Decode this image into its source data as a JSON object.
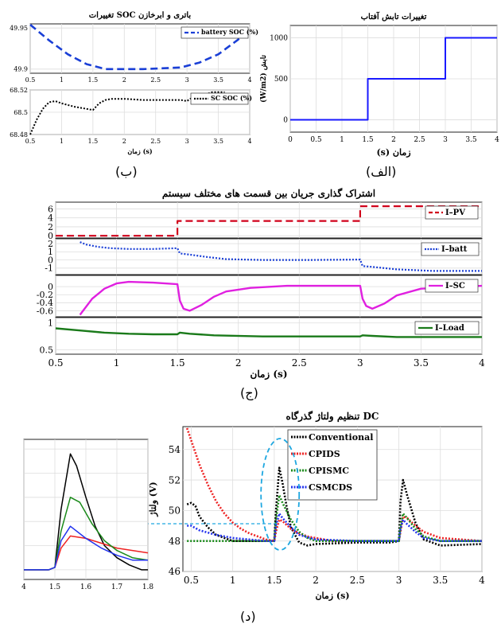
{
  "captions": {
    "b": "(ب)",
    "alef": "(الف)",
    "jim": "(ج)",
    "dal": "(د)"
  },
  "chart_data": [
    {
      "id": "alef",
      "type": "line",
      "title": "تغییرات تابش آفتاب",
      "xlabel": "(s) زمان",
      "ylabel": "(W/m2) تابش",
      "xlim": [
        0,
        4
      ],
      "ylim": [
        -150,
        1150
      ],
      "xticks": [
        "0",
        "0.5",
        "1",
        "1.5",
        "2",
        "2.5",
        "3",
        "3.5",
        "4"
      ],
      "yticks": [
        "0",
        "500",
        "1000"
      ],
      "grid": true,
      "series": [
        {
          "name": "",
          "color": "#1a1aff",
          "style": "solid",
          "x": [
            0,
            1.5,
            1.5,
            3,
            3,
            4
          ],
          "y": [
            0,
            0,
            500,
            500,
            1000,
            1000
          ]
        }
      ]
    },
    {
      "id": "b-top",
      "type": "line",
      "title": "تغییرات SOC باتری و ابرخازن",
      "xlim": [
        0.5,
        4
      ],
      "ylim": [
        49.895,
        49.955
      ],
      "xticks": [
        "0.5",
        "1",
        "1.5",
        "2",
        "2.5",
        "3",
        "3.5",
        "4"
      ],
      "yticks": [
        "49.9",
        "49.95"
      ],
      "grid": true,
      "legend": "top-right",
      "series": [
        {
          "name": "battery SOC (%)",
          "color": "#1a3fd6",
          "style": "dashed",
          "x": [
            0.5,
            0.8,
            1.1,
            1.4,
            1.7,
            2.0,
            2.3,
            2.6,
            2.9,
            3.2,
            3.5,
            3.8,
            4.0
          ],
          "y": [
            49.954,
            49.935,
            49.918,
            49.906,
            49.9,
            49.9,
            49.9,
            49.901,
            49.902,
            49.908,
            49.918,
            49.935,
            49.948
          ]
        }
      ]
    },
    {
      "id": "b-bottom",
      "type": "line",
      "xlabel": "زمان (s)",
      "xlim": [
        0.5,
        4
      ],
      "ylim": [
        68.48,
        68.52
      ],
      "xticks": [
        "0.5",
        "1",
        "1.5",
        "2",
        "2.5",
        "3",
        "3.5",
        "4"
      ],
      "yticks": [
        "68.48",
        "68.5",
        "68.52"
      ],
      "grid": true,
      "legend": "top-right",
      "series": [
        {
          "name": "SC SOC (%)",
          "color": "#000000",
          "style": "dotted",
          "x": [
            0.5,
            0.6,
            0.7,
            0.8,
            0.9,
            1.0,
            1.2,
            1.4,
            1.5,
            1.55,
            1.6,
            1.7,
            1.8,
            2.0,
            2.3,
            2.6,
            2.9,
            3.0,
            3.05,
            3.1,
            3.2,
            3.4,
            3.6
          ],
          "y": [
            68.48,
            68.493,
            68.503,
            68.509,
            68.51,
            68.508,
            68.505,
            68.503,
            68.502,
            68.505,
            68.508,
            68.511,
            68.512,
            68.512,
            68.511,
            68.511,
            68.511,
            68.51,
            68.512,
            68.513,
            68.514,
            68.518,
            68.518
          ]
        }
      ]
    },
    {
      "id": "jim",
      "type": "line",
      "title": "اشتراک گذاری جریان بین قسمت های مختلف سیستم",
      "xlabel": "زمان (s)",
      "xlim": [
        0.5,
        4
      ],
      "xticks": [
        "0.5",
        "1",
        "1.5",
        "2",
        "2.5",
        "3",
        "3.5",
        "4"
      ],
      "grid": true,
      "panels": [
        {
          "name": "I–PV",
          "color": "#d0021b",
          "style": "dashed",
          "ylim": [
            -0.5,
            7.5
          ],
          "yticks": [
            "0",
            "2",
            "4",
            "6"
          ],
          "x": [
            0.5,
            1.5,
            1.5,
            3.0,
            3.0,
            4.0
          ],
          "y": [
            0,
            0,
            3.3,
            3.3,
            6.6,
            6.6
          ]
        },
        {
          "name": "I–batt",
          "color": "#1a3fd6",
          "style": "dotted",
          "ylim": [
            -1.8,
            2.6
          ],
          "yticks": [
            "-1",
            "0",
            "1",
            "2"
          ],
          "x": [
            0.7,
            0.75,
            0.85,
            0.95,
            1.1,
            1.3,
            1.5,
            1.52,
            1.6,
            1.75,
            1.9,
            2.2,
            2.6,
            3.0,
            3.02,
            3.1,
            3.3,
            3.6,
            4.0
          ],
          "y": [
            2.2,
            1.9,
            1.6,
            1.45,
            1.35,
            1.35,
            1.45,
            0.8,
            0.65,
            0.35,
            0.1,
            0.0,
            0.0,
            0.05,
            -0.75,
            -0.85,
            -1.15,
            -1.35,
            -1.35
          ]
        },
        {
          "name": "I–SC",
          "color": "#e020e0",
          "style": "solid",
          "ylim": [
            -0.75,
            0.28
          ],
          "yticks": [
            "-0.6",
            "-0.4",
            "-0.2",
            "0"
          ],
          "x": [
            0.7,
            0.8,
            0.9,
            1.0,
            1.1,
            1.3,
            1.5,
            1.52,
            1.55,
            1.6,
            1.7,
            1.8,
            1.9,
            2.1,
            2.4,
            2.7,
            3.0,
            3.02,
            3.05,
            3.1,
            3.2,
            3.3,
            3.5,
            4.0
          ],
          "y": [
            -0.7,
            -0.3,
            -0.05,
            0.08,
            0.12,
            0.1,
            0.06,
            -0.35,
            -0.55,
            -0.6,
            -0.45,
            -0.25,
            -0.12,
            -0.03,
            0.02,
            0.02,
            0.02,
            -0.3,
            -0.48,
            -0.55,
            -0.42,
            -0.22,
            -0.05,
            0.02
          ]
        },
        {
          "name": "I–Load",
          "color": "#1a7a1a",
          "style": "solid",
          "ylim": [
            0.42,
            1.1
          ],
          "yticks": [
            "0.5",
            "1"
          ],
          "x": [
            0.5,
            0.7,
            0.9,
            1.1,
            1.3,
            1.5,
            1.52,
            1.6,
            1.8,
            2.2,
            2.6,
            3.0,
            3.02,
            3.1,
            3.3,
            3.6,
            4.0
          ],
          "y": [
            0.9,
            0.86,
            0.82,
            0.8,
            0.79,
            0.79,
            0.82,
            0.8,
            0.77,
            0.75,
            0.75,
            0.75,
            0.77,
            0.76,
            0.74,
            0.74,
            0.74
          ]
        }
      ]
    },
    {
      "id": "dal",
      "type": "line",
      "title": "تنظیم ولتاژ گذرگاه DC",
      "xlabel": "زمان (s)",
      "ylabel": "ولتاژ (V)",
      "xlim": [
        0.4,
        4
      ],
      "ylim": [
        46,
        55.5
      ],
      "xticks": [
        "0.5",
        "1",
        "1.5",
        "2",
        "2.5",
        "3",
        "3.5",
        "4"
      ],
      "yticks": [
        "46",
        "48",
        "50",
        "52",
        "54"
      ],
      "grid": true,
      "legend": "top-left",
      "series": [
        {
          "name": "Conventional",
          "color": "#000000",
          "style": "dotted",
          "x": [
            0.45,
            0.5,
            0.55,
            0.6,
            0.7,
            0.8,
            0.9,
            1.0,
            1.2,
            1.4,
            1.5,
            1.52,
            1.56,
            1.6,
            1.65,
            1.7,
            1.8,
            1.9,
            2.0,
            2.5,
            2.9,
            3.0,
            3.02,
            3.05,
            3.1,
            3.2,
            3.3,
            3.5,
            4.0
          ],
          "y": [
            50.4,
            50.5,
            50.3,
            49.6,
            48.9,
            48.4,
            48.2,
            48.0,
            48.0,
            48.0,
            48.0,
            50.0,
            52.8,
            51.8,
            50.2,
            48.9,
            47.9,
            47.7,
            47.8,
            47.9,
            47.9,
            48.0,
            50.6,
            52.0,
            51.0,
            49.2,
            48.1,
            47.7,
            47.8
          ]
        },
        {
          "name": "CPIDS",
          "color": "#ee2222",
          "style": "dotted",
          "x": [
            0.45,
            0.5,
            0.6,
            0.7,
            0.8,
            0.9,
            1.0,
            1.1,
            1.2,
            1.3,
            1.4,
            1.5,
            1.52,
            1.56,
            1.6,
            1.7,
            1.8,
            1.9,
            2.0,
            2.2,
            2.5,
            3.0,
            3.02,
            3.05,
            3.1,
            3.2,
            3.3,
            3.5,
            4.0
          ],
          "y": [
            55.4,
            54.6,
            53.0,
            51.7,
            50.6,
            49.8,
            49.2,
            48.8,
            48.5,
            48.3,
            48.1,
            48.0,
            48.6,
            49.4,
            49.3,
            48.8,
            48.5,
            48.3,
            48.2,
            48.0,
            48.0,
            48.0,
            48.6,
            49.6,
            49.5,
            49.0,
            48.6,
            48.2,
            48.0
          ]
        },
        {
          "name": "CPISMC",
          "color": "#1a8a1a",
          "style": "dotted",
          "x": [
            0.45,
            0.6,
            1.0,
            1.4,
            1.5,
            1.52,
            1.56,
            1.6,
            1.7,
            1.8,
            1.9,
            2.0,
            2.5,
            3.0,
            3.02,
            3.05,
            3.1,
            3.2,
            3.3,
            3.5,
            4.0
          ],
          "y": [
            48.0,
            48.0,
            48.0,
            48.0,
            48.0,
            49.4,
            51.0,
            50.5,
            49.4,
            48.6,
            48.2,
            48.0,
            48.0,
            48.0,
            49.0,
            49.8,
            49.5,
            48.8,
            48.3,
            48.0,
            48.0
          ]
        },
        {
          "name": "CSMCDS",
          "color": "#2233ee",
          "style": "dotted",
          "x": [
            0.45,
            0.5,
            0.6,
            0.8,
            1.0,
            1.2,
            1.4,
            1.5,
            1.52,
            1.56,
            1.6,
            1.7,
            1.8,
            2.0,
            2.5,
            3.0,
            3.02,
            3.05,
            3.1,
            3.2,
            3.3,
            3.5,
            4.0
          ],
          "y": [
            49.0,
            49.0,
            48.7,
            48.4,
            48.2,
            48.1,
            48.0,
            48.0,
            49.0,
            49.8,
            49.5,
            48.9,
            48.4,
            48.1,
            48.0,
            48.0,
            48.8,
            49.4,
            49.1,
            48.6,
            48.2,
            48.0,
            48.0
          ]
        }
      ]
    },
    {
      "id": "zoom",
      "type": "line",
      "xlim": [
        1.4,
        1.8
      ],
      "ylim": [
        47.6,
        53.4
      ],
      "xticks": [
        "4",
        "1.5",
        "1.6",
        "1.7",
        "1.8"
      ],
      "grid": true,
      "series": [
        {
          "name": "",
          "color": "#000000",
          "style": "solid",
          "x": [
            1.4,
            1.48,
            1.5,
            1.52,
            1.55,
            1.57,
            1.6,
            1.63,
            1.66,
            1.7,
            1.74,
            1.78,
            1.8
          ],
          "y": [
            48.0,
            48.0,
            48.1,
            50.5,
            52.8,
            52.3,
            51.0,
            49.8,
            49.0,
            48.5,
            48.2,
            48.0,
            48.0
          ]
        },
        {
          "name": "",
          "color": "#ee2222",
          "style": "solid",
          "x": [
            1.4,
            1.48,
            1.5,
            1.52,
            1.55,
            1.6,
            1.65,
            1.7,
            1.75,
            1.8
          ],
          "y": [
            48.0,
            48.0,
            48.1,
            48.9,
            49.4,
            49.3,
            49.1,
            48.9,
            48.8,
            48.7
          ]
        },
        {
          "name": "",
          "color": "#1a8a1a",
          "style": "solid",
          "x": [
            1.4,
            1.48,
            1.5,
            1.52,
            1.55,
            1.58,
            1.62,
            1.66,
            1.7,
            1.75,
            1.8
          ],
          "y": [
            48.0,
            48.0,
            48.1,
            49.6,
            51.0,
            50.8,
            49.9,
            49.2,
            48.8,
            48.5,
            48.4
          ]
        },
        {
          "name": "",
          "color": "#2233ee",
          "style": "solid",
          "x": [
            1.4,
            1.48,
            1.5,
            1.52,
            1.55,
            1.6,
            1.65,
            1.7,
            1.75,
            1.8
          ],
          "y": [
            48.0,
            48.0,
            48.1,
            49.2,
            49.8,
            49.3,
            48.9,
            48.6,
            48.4,
            48.4
          ]
        }
      ]
    }
  ]
}
